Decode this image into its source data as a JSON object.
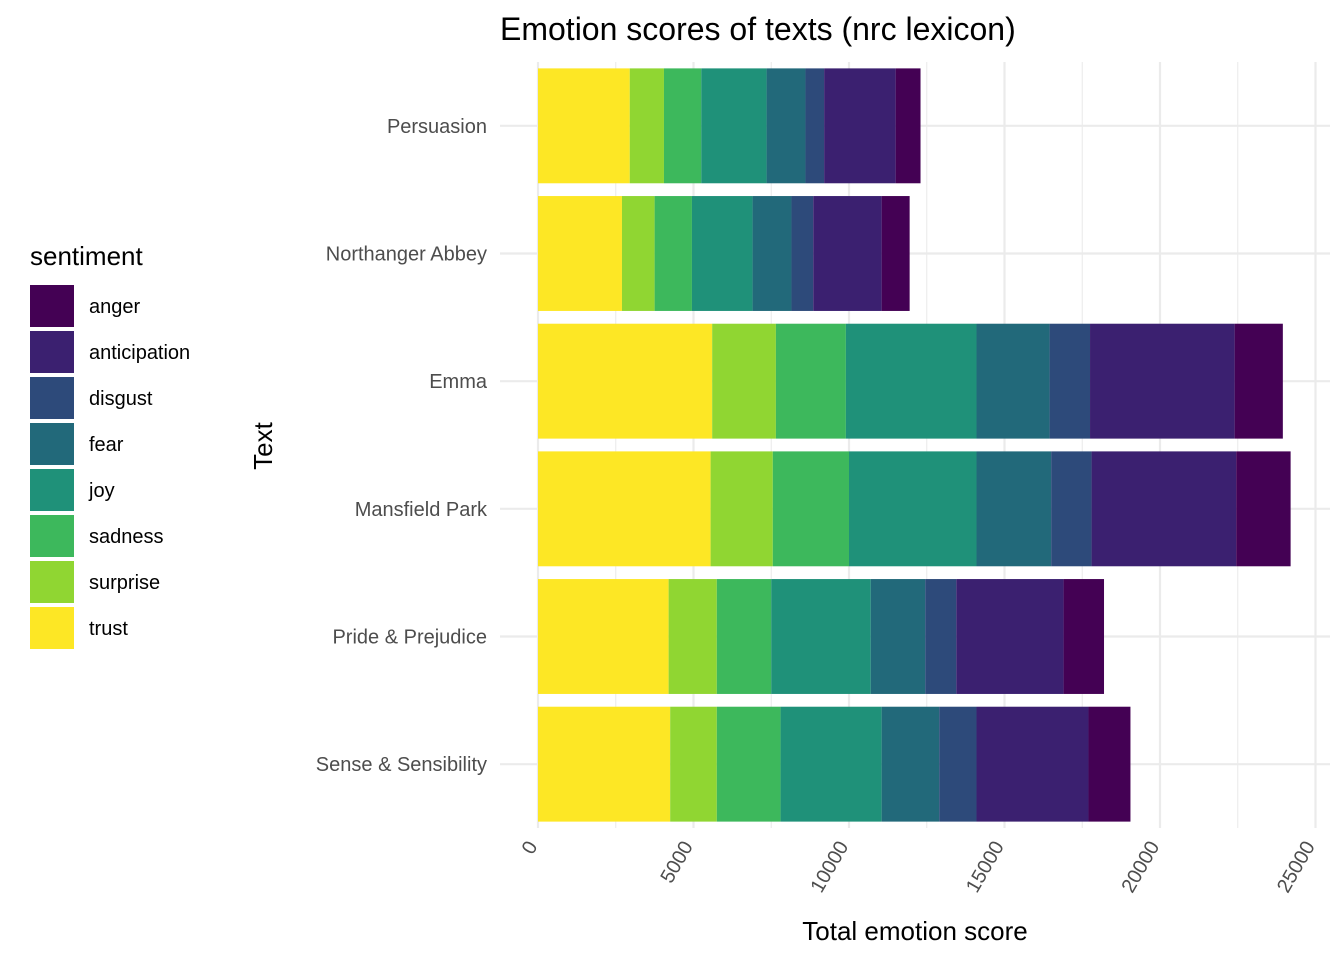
{
  "chart_data": {
    "type": "bar",
    "orientation": "horizontal",
    "stacked": true,
    "title": "Emotion scores of texts (nrc lexicon)",
    "xlabel": "Total emotion score",
    "ylabel": "Text",
    "xlim": [
      0,
      25000
    ],
    "x_ticks": [
      0,
      5000,
      10000,
      15000,
      20000,
      25000
    ],
    "x_tick_labels": [
      "0",
      "5000",
      "10000",
      "15000",
      "20000",
      "25000"
    ],
    "grid": true,
    "legend_title": "sentiment",
    "legend_position": "left",
    "categories": [
      "Persuasion",
      "Northanger Abbey",
      "Emma",
      "Mansfield Park",
      "Pride & Prejudice",
      "Sense & Sensibility"
    ],
    "stack_order": [
      "trust",
      "surprise",
      "sadness",
      "joy",
      "fear",
      "disgust",
      "anticipation",
      "anger"
    ],
    "series": [
      {
        "name": "anger",
        "color": "#440154",
        "values": [
          800,
          900,
          1550,
          1750,
          1300,
          1350
        ]
      },
      {
        "name": "anticipation",
        "color": "#3B2070",
        "values": [
          2300,
          2200,
          4650,
          4650,
          3450,
          3600
        ]
      },
      {
        "name": "disgust",
        "color": "#2D4A7A",
        "values": [
          600,
          700,
          1300,
          1300,
          1000,
          1200
        ]
      },
      {
        "name": "fear",
        "color": "#22697A",
        "values": [
          1250,
          1250,
          2350,
          2400,
          1750,
          1850
        ]
      },
      {
        "name": "joy",
        "color": "#1F9179",
        "values": [
          2100,
          1950,
          4200,
          4100,
          3200,
          3250
        ]
      },
      {
        "name": "sadness",
        "color": "#3DB85C",
        "values": [
          1200,
          1200,
          2250,
          2450,
          1750,
          2050
        ]
      },
      {
        "name": "surprise",
        "color": "#90D632",
        "values": [
          1100,
          1050,
          2050,
          2000,
          1550,
          1500
        ]
      },
      {
        "name": "trust",
        "color": "#FDE725",
        "values": [
          2950,
          2700,
          5600,
          5550,
          4200,
          4250
        ]
      }
    ]
  }
}
